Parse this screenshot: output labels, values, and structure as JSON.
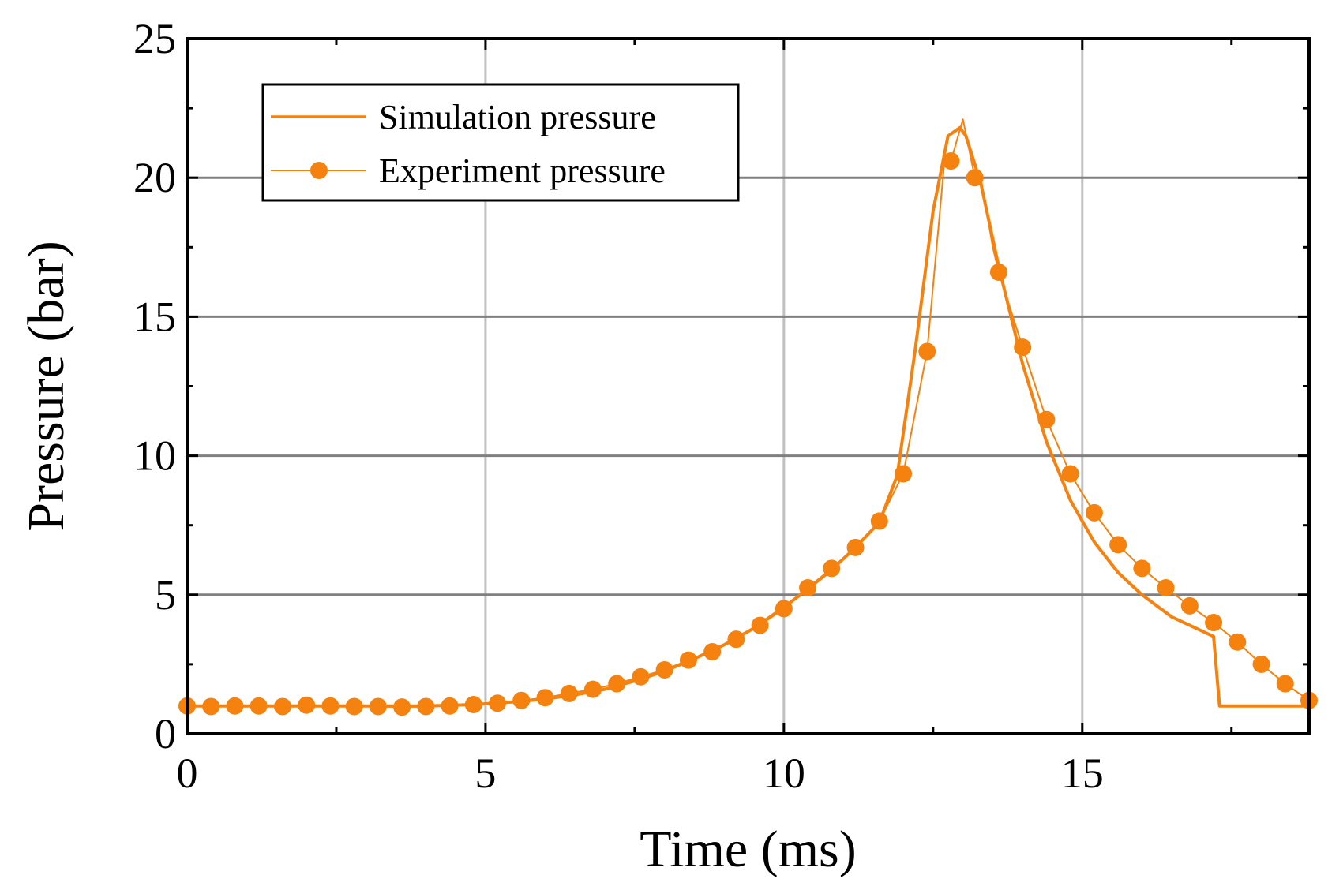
{
  "chart_data": {
    "type": "line",
    "title": "",
    "xlabel": "Time (ms)",
    "ylabel": "Pressure (bar)",
    "xlim": [
      0,
      18.8
    ],
    "ylim": [
      0,
      25
    ],
    "xticks": [
      "0",
      "5",
      "10",
      "15"
    ],
    "yticks": [
      "0",
      "5",
      "10",
      "15",
      "20",
      "25"
    ],
    "grid": true,
    "legend_position": "top-left",
    "colors": {
      "series": "#f5820f",
      "grid_x": "#c0c0c0",
      "grid_y": "#808080",
      "axis": "#000000"
    },
    "series": [
      {
        "name": "Simulation pressure",
        "style": "line",
        "x": [
          0,
          1,
          2,
          3,
          4,
          4.8,
          5.5,
          6,
          6.5,
          7,
          7.5,
          8,
          8.5,
          9,
          9.5,
          10,
          10.4,
          10.8,
          11.2,
          11.6,
          11.9,
          12.2,
          12.5,
          12.75,
          12.95,
          13.05,
          13.3,
          13.6,
          14.0,
          14.4,
          14.8,
          15.2,
          15.6,
          16.0,
          16.5,
          17.0,
          17.2,
          17.3,
          18.8
        ],
        "y": [
          1.0,
          1.0,
          1.0,
          1.0,
          1.0,
          1.05,
          1.15,
          1.25,
          1.4,
          1.6,
          1.9,
          2.25,
          2.7,
          3.2,
          3.8,
          4.55,
          5.2,
          5.9,
          6.7,
          7.6,
          9.3,
          13.8,
          18.8,
          21.5,
          21.8,
          21.5,
          19.8,
          16.8,
          13.3,
          10.5,
          8.4,
          6.9,
          5.8,
          5.0,
          4.2,
          3.7,
          3.5,
          1.0,
          1.0
        ]
      },
      {
        "name": "Experiment pressure",
        "style": "line-markers",
        "x": [
          0,
          0.4,
          0.8,
          1.2,
          1.6,
          2.0,
          2.4,
          2.8,
          3.2,
          3.6,
          4.0,
          4.4,
          4.8,
          5.2,
          5.6,
          6.0,
          6.4,
          6.8,
          7.2,
          7.6,
          8.0,
          8.4,
          8.8,
          9.2,
          9.6,
          10.0,
          10.4,
          10.8,
          11.2,
          11.6,
          12.0,
          12.4,
          12.8,
          13.2,
          13.6,
          14.0,
          14.4,
          14.8,
          15.2,
          15.6,
          16.0,
          16.4,
          16.8,
          17.2,
          17.6,
          18.0,
          18.4,
          18.8
        ],
        "y": [
          1.0,
          0.98,
          1.0,
          1.0,
          0.98,
          1.03,
          1.0,
          0.98,
          0.98,
          0.96,
          0.98,
          1.0,
          1.05,
          1.1,
          1.2,
          1.3,
          1.45,
          1.6,
          1.8,
          2.05,
          2.3,
          2.65,
          2.95,
          3.4,
          3.9,
          4.5,
          5.25,
          5.95,
          6.7,
          7.65,
          9.35,
          13.75,
          20.6,
          20.0,
          16.6,
          13.9,
          11.3,
          9.35,
          7.95,
          6.8,
          5.95,
          5.25,
          4.6,
          4.0,
          3.3,
          2.5,
          1.8,
          1.2
        ],
        "peak_line": {
          "x": [
            12.7,
            13.0,
            13.3,
            13.5
          ],
          "y": [
            20.8,
            22.1,
            20.0,
            17.5
          ]
        }
      }
    ]
  }
}
